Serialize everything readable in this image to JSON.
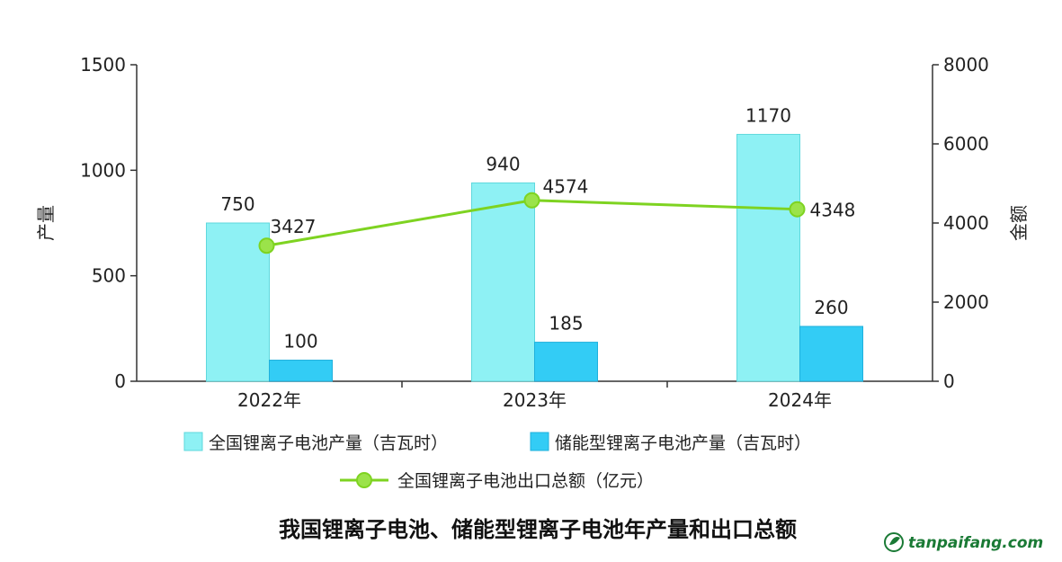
{
  "chart_data": {
    "type": "bar",
    "title": "我国锂离子电池、储能型锂离子电池年产量和出口总额",
    "categories": [
      "2022年",
      "2023年",
      "2024年"
    ],
    "ylabel_left": "产量",
    "ylabel_right": "金额",
    "ylim_left": [
      0,
      1500
    ],
    "ylim_right": [
      0,
      8000
    ],
    "yticks_left": [
      0,
      500,
      1000,
      1500
    ],
    "yticks_right": [
      0,
      2000,
      4000,
      6000,
      8000
    ],
    "yticks_left_labels": [
      "0",
      "500",
      "1000",
      "1500"
    ],
    "yticks_right_labels": [
      "0",
      "2000",
      "4000",
      "6000",
      "8000"
    ],
    "grid": false,
    "legend_position": "bottom",
    "series": [
      {
        "name": "全国锂离子电池产量（吉瓦时）",
        "type": "bar",
        "axis": "left",
        "color": "#8EF1F4",
        "values": [
          750,
          940,
          1170
        ],
        "labels": [
          "750",
          "940",
          "1170"
        ]
      },
      {
        "name": "储能型锂离子电池产量（吉瓦时）",
        "type": "bar",
        "axis": "left",
        "color": "#33CCF5",
        "values": [
          100,
          185,
          260
        ],
        "labels": [
          "100",
          "185",
          "260"
        ]
      },
      {
        "name": "全国锂离子电池出口总额（亿元）",
        "type": "line",
        "axis": "right",
        "color": "#7ED321",
        "values": [
          3427,
          4574,
          4348
        ],
        "labels": [
          "3427",
          "4574",
          "4348"
        ]
      }
    ]
  },
  "watermark": {
    "text": "tanpaifang.com",
    "color": "#1a7a35"
  }
}
